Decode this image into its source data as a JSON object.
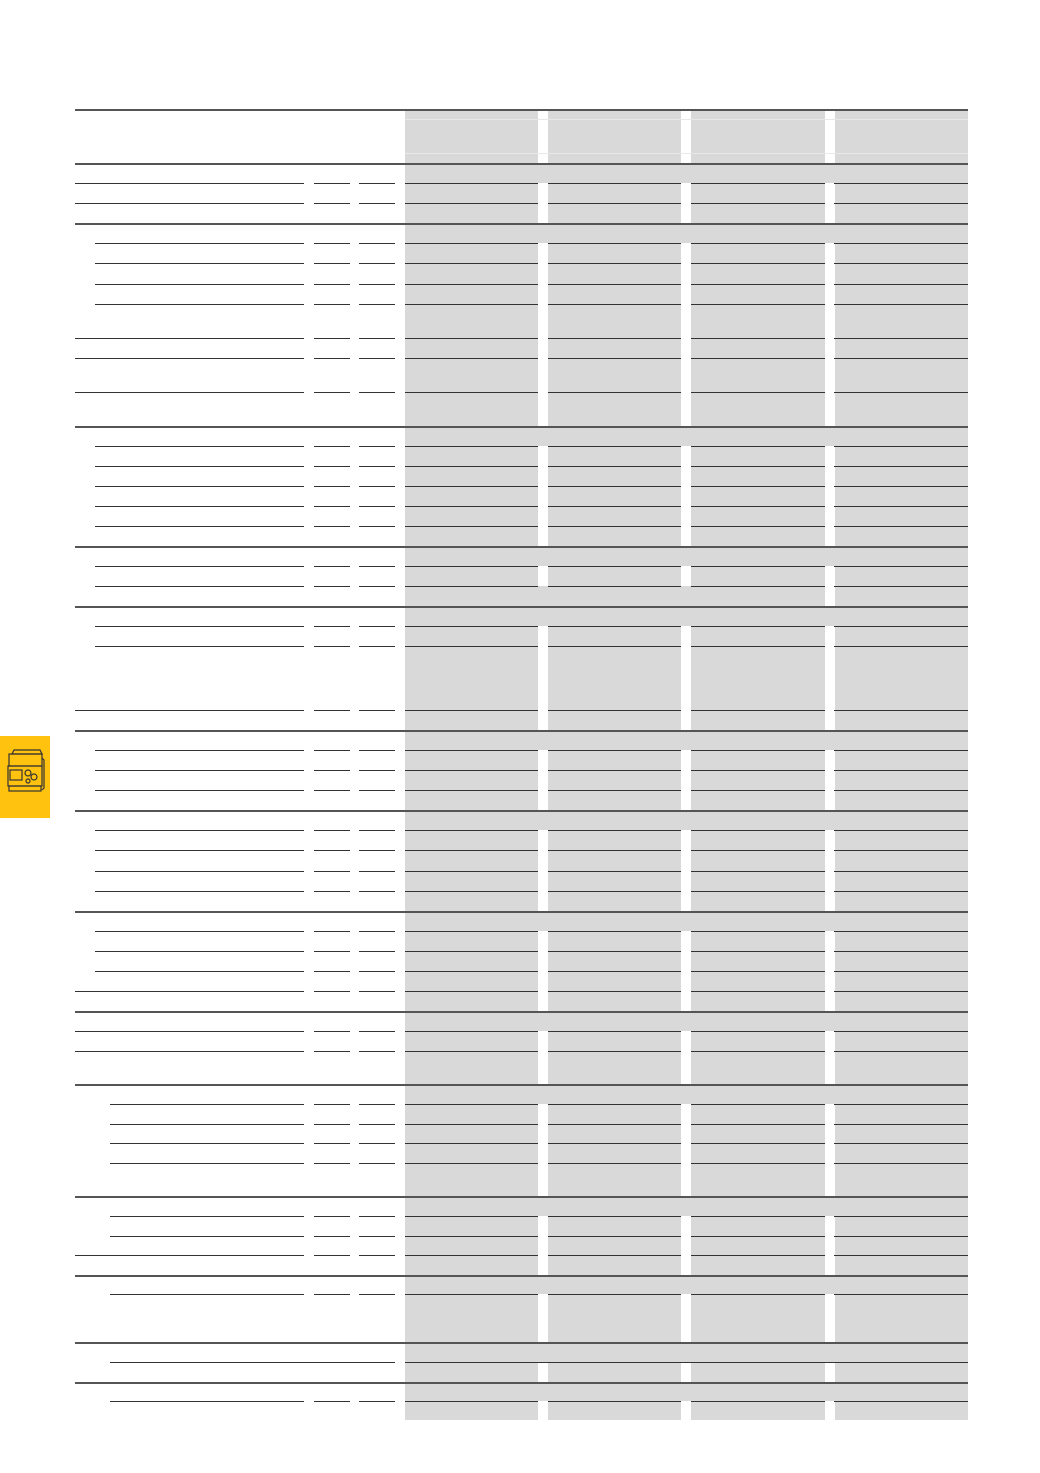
{
  "colors": {
    "column_shading": "#d9d9d9",
    "rule_lines": "#333333",
    "side_tab": "#ffc20e"
  },
  "side_tab": {
    "icon": "plc-controller-device-icon"
  }
}
